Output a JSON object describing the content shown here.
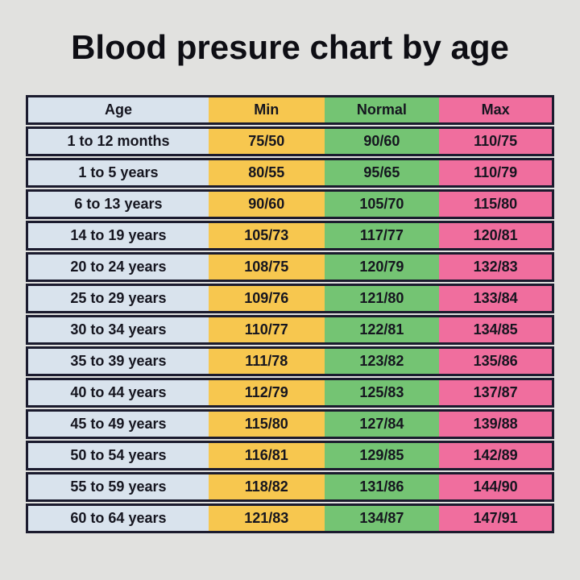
{
  "title": "Blood presure chart by age",
  "colors": {
    "background": "#e1e1df",
    "border": "#1b1b2e",
    "text": "#15151f",
    "age_column": "#d9e3ed",
    "min_column": "#f7c74f",
    "normal_column": "#74c473",
    "max_column": "#f06e9e"
  },
  "chart_data": {
    "type": "table",
    "title": "Blood presure chart by age",
    "columns": [
      "Age",
      "Min",
      "Normal",
      "Max"
    ],
    "rows": [
      [
        "1 to 12 months",
        "75/50",
        "90/60",
        "110/75"
      ],
      [
        "1 to 5 years",
        "80/55",
        "95/65",
        "110/79"
      ],
      [
        "6 to 13 years",
        "90/60",
        "105/70",
        "115/80"
      ],
      [
        "14 to 19 years",
        "105/73",
        "117/77",
        "120/81"
      ],
      [
        "20 to 24 years",
        "108/75",
        "120/79",
        "132/83"
      ],
      [
        "25 to 29 years",
        "109/76",
        "121/80",
        "133/84"
      ],
      [
        "30 to 34 years",
        "110/77",
        "122/81",
        "134/85"
      ],
      [
        "35 to 39 years",
        "111/78",
        "123/82",
        "135/86"
      ],
      [
        "40 to 44 years",
        "112/79",
        "125/83",
        "137/87"
      ],
      [
        "45 to 49 years",
        "115/80",
        "127/84",
        "139/88"
      ],
      [
        "50 to 54 years",
        "116/81",
        "129/85",
        "142/89"
      ],
      [
        "55 to 59 years",
        "118/82",
        "131/86",
        "144/90"
      ],
      [
        "60 to 64 years",
        "121/83",
        "134/87",
        "147/91"
      ]
    ]
  }
}
